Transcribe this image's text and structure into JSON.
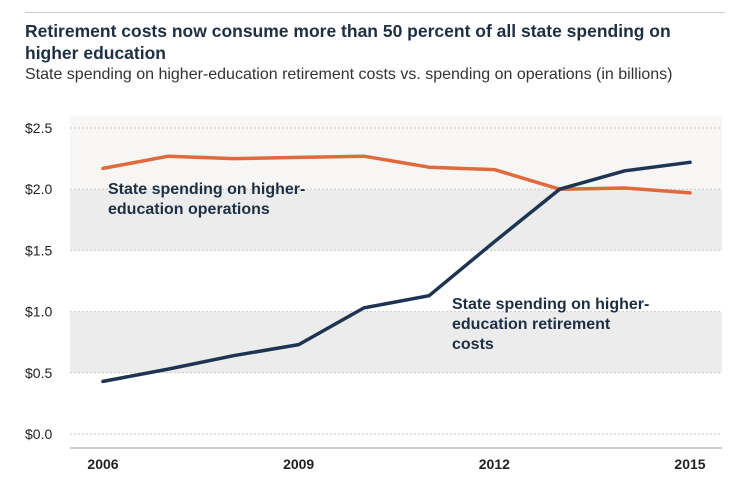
{
  "chart_data": {
    "type": "line",
    "title": "Retirement costs now consume more than 50 percent of all state spending on higher education",
    "subtitle": "State spending on higher-education retirement costs vs. spending on operations (in billions)",
    "x": [
      2006,
      2007,
      2008,
      2009,
      2010,
      2011,
      2012,
      2013,
      2014,
      2015
    ],
    "xticks": [
      "2006",
      "2009",
      "2012",
      "2015"
    ],
    "ylim": [
      0,
      2.5
    ],
    "yticks": [
      "$0.0",
      "$0.5",
      "$1.0",
      "$1.5",
      "$2.0",
      "$2.5"
    ],
    "grid": true,
    "series": [
      {
        "name": "State spending on higher-education operations",
        "annotation": [
          "State spending on higher-",
          "education operations"
        ],
        "color": "#e06a3c",
        "values": [
          2.17,
          2.27,
          2.25,
          2.26,
          2.27,
          2.18,
          2.16,
          2.0,
          2.01,
          1.97
        ]
      },
      {
        "name": "State spending on higher-education retirement costs",
        "annotation": [
          "State spending on higher-",
          "education retirement",
          "costs"
        ],
        "color": "#1d3553",
        "values": [
          0.43,
          0.53,
          0.64,
          0.73,
          1.03,
          1.13,
          1.57,
          2.0,
          2.15,
          2.22
        ]
      }
    ]
  }
}
